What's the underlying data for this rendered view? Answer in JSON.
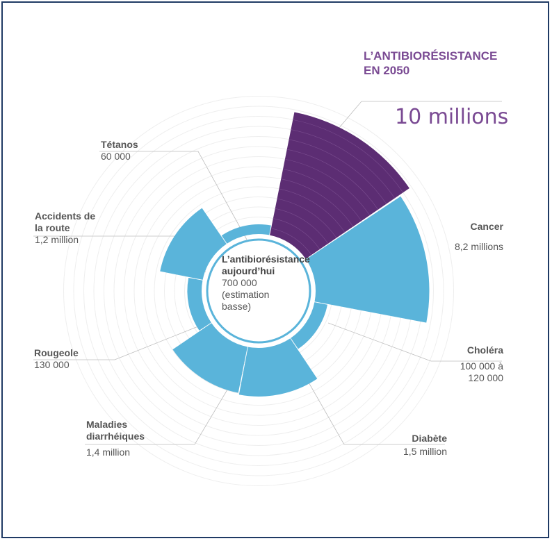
{
  "chart_data": {
    "type": "polar-area",
    "title": "L’ANTIBIORÉSISTANCE EN 2050",
    "highlight_value": "10 millions",
    "center": {
      "name": "L’antibiorésistance aujourd’hui",
      "value": "700 000",
      "note": "(estimation basse)"
    },
    "sectors": [
      {
        "name": "L’antibiorésistance en 2050",
        "value": 10000000,
        "display": "10 millions",
        "color": "#5c2d73"
      },
      {
        "name": "Cancer",
        "value": 8200000,
        "display": "8,2 millions",
        "color": "#5ab4da"
      },
      {
        "name": "Choléra",
        "value": 110000,
        "display": "100 000 à 120 000",
        "color": "#5ab4da"
      },
      {
        "name": "Diabète",
        "value": 1500000,
        "display": "1,5 million",
        "color": "#5ab4da"
      },
      {
        "name": "Maladies diarrhéiques",
        "value": 1400000,
        "display": "1,4 million",
        "color": "#5ab4da"
      },
      {
        "name": "Rougeole",
        "value": 130000,
        "display": "130 000",
        "color": "#5ab4da"
      },
      {
        "name": "Accidents de la route",
        "value": 1200000,
        "display": "1,2 million",
        "color": "#5ab4da"
      },
      {
        "name": "Tétanos",
        "value": 60000,
        "display": "60 000",
        "color": "#5ab4da"
      }
    ],
    "center_ring_color": "#5ab4da",
    "grid": true
  },
  "labels": {
    "tetanos_name": "Tétanos",
    "tetanos_value": "60 000",
    "accidents_name_1": "Accidents de",
    "accidents_name_2": "la route",
    "accidents_value": "1,2 million",
    "rougeole_name": "Rougeole",
    "rougeole_value": "130 000",
    "diarrhee_name_1": "Maladies",
    "diarrhee_name_2": "diarrhéiques",
    "diarrhee_value": "1,4 million",
    "diabete_name": "Diabète",
    "diabete_value": "1,5 million",
    "cholera_name": "Choléra",
    "cholera_value_1": "100 000 à",
    "cholera_value_2": "120 000",
    "cancer_name": "Cancer",
    "cancer_value": "8,2 millions",
    "title_1": "L’ANTIBIORÉSISTANCE",
    "title_2": "EN 2050",
    "big_value": "10 millions",
    "center_name_1": "L’antibiorésistance",
    "center_name_2": "aujourd’hui",
    "center_value": "700 000",
    "center_note_1": "(estimation",
    "center_note_2": "basse)"
  }
}
